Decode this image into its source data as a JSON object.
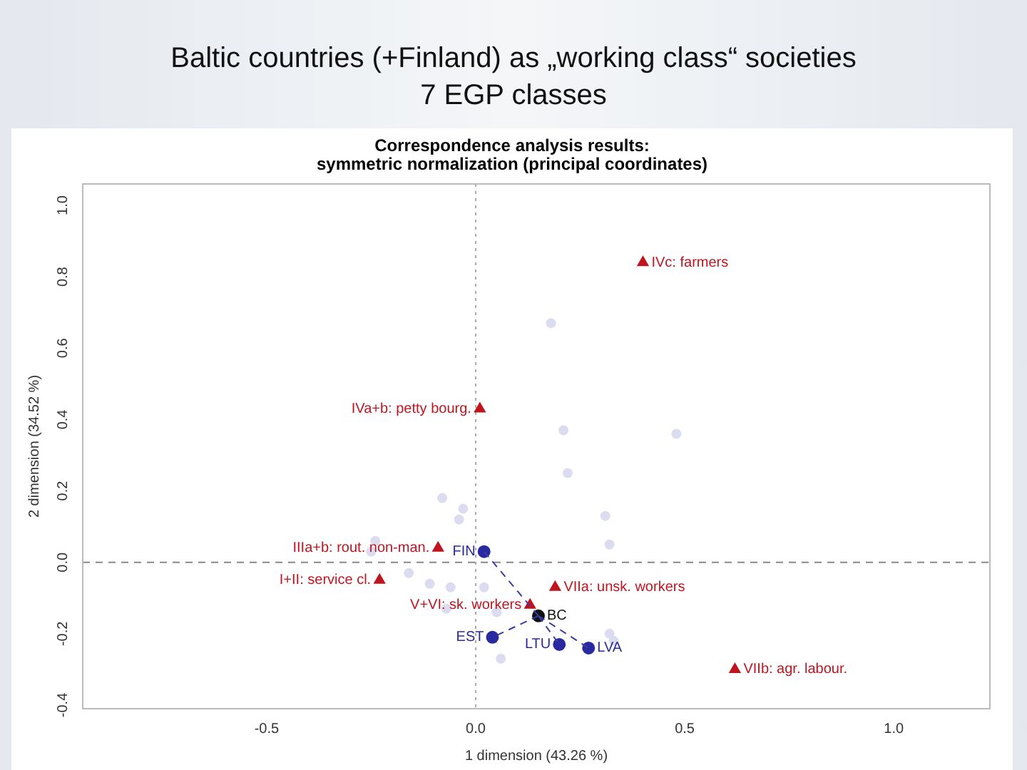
{
  "chart_data": {
    "type": "scatter",
    "title": "Baltic countries (+Finland) as „working class“ societies\n7 EGP classes",
    "subtitle": "Correspondence analysis results:\nsymmetric normalization (principal coordinates)",
    "xlabel": "1 dimension (43.26 %)",
    "ylabel": "2 dimension (34.52 %)",
    "xlim": [
      -0.94,
      1.23
    ],
    "ylim": [
      -0.41,
      1.06
    ],
    "xticks": [
      -0.5,
      {
        "value": 0,
        "label": "0.0"
      },
      0.5,
      {
        "value": 1,
        "label": "1.0"
      }
    ],
    "yticks": [
      -0.4,
      -0.2,
      {
        "value": 0,
        "label": "0.0"
      },
      0.2,
      0.4,
      0.6,
      0.8,
      {
        "value": 1,
        "label": "1.0"
      }
    ],
    "grid": false,
    "ref_lines": [
      {
        "axis": "x",
        "value": 0,
        "color": "#aaaaaa",
        "line_style": "dotted"
      },
      {
        "axis": "y",
        "value": 0,
        "color": "#888888",
        "line_style": "dashed"
      }
    ],
    "series": [
      {
        "color": "#dcdcf0",
        "marker": "circle",
        "x": [
          0.18,
          0.21,
          0.48,
          0.22,
          0.31,
          0.32,
          -0.08,
          -0.03,
          -0.04,
          -0.24,
          -0.25,
          -0.16,
          -0.11,
          -0.06,
          0.02,
          -0.07,
          0.05,
          0.06,
          0.33,
          0.32
        ],
        "values": [
          0.67,
          0.37,
          0.36,
          0.25,
          0.13,
          0.05,
          0.18,
          0.15,
          0.12,
          0.06,
          0.03,
          -0.03,
          -0.06,
          -0.07,
          -0.07,
          -0.13,
          -0.14,
          -0.27,
          -0.22,
          -0.2
        ]
      },
      {
        "type": "line",
        "color": "#3a3aa8",
        "line_style": "dashed",
        "marker": "none",
        "x": [
          0.15,
          0.02
        ],
        "values": [
          -0.15,
          0.03
        ]
      },
      {
        "type": "line",
        "color": "#3a3aa8",
        "line_style": "dashed",
        "marker": "none",
        "x": [
          0.15,
          0.04
        ],
        "values": [
          -0.15,
          -0.21
        ]
      },
      {
        "type": "line",
        "color": "#3a3aa8",
        "line_style": "dashed",
        "marker": "none",
        "x": [
          0.15,
          0.2
        ],
        "values": [
          -0.15,
          -0.23
        ]
      },
      {
        "type": "line",
        "color": "#3a3aa8",
        "line_style": "dashed",
        "marker": "none",
        "x": [
          0.15,
          0.27
        ],
        "values": [
          -0.15,
          -0.24
        ]
      },
      {
        "name": "IVc: farmers",
        "color": "#c0141e",
        "marker": "triangle",
        "x": [
          0.4
        ],
        "values": [
          0.84
        ]
      },
      {
        "name": "IVa+b: petty bourg.",
        "color": "#c0141e",
        "marker": "triangle",
        "x": [
          0.01
        ],
        "values": [
          0.43
        ]
      },
      {
        "name": "IIIa+b: rout. non-man.",
        "color": "#c0141e",
        "marker": "triangle",
        "x": [
          -0.09
        ],
        "values": [
          0.04
        ]
      },
      {
        "name": "I+II: service cl.",
        "color": "#c0141e",
        "marker": "triangle",
        "x": [
          -0.23
        ],
        "values": [
          -0.05
        ]
      },
      {
        "name": "VIIa: unsk. workers",
        "color": "#c0141e",
        "marker": "triangle",
        "x": [
          0.19
        ],
        "values": [
          -0.07
        ]
      },
      {
        "name": "V+VI: sk. workers",
        "color": "#c0141e",
        "marker": "triangle",
        "x": [
          0.13
        ],
        "values": [
          -0.12
        ]
      },
      {
        "name": "VIIb: agr. labour.",
        "color": "#c0141e",
        "marker": "triangle",
        "x": [
          0.62
        ],
        "values": [
          -0.3
        ]
      },
      {
        "name": "FIN",
        "color": "#2a2aa0",
        "marker": "circle",
        "x": [
          0.02
        ],
        "values": [
          0.03
        ]
      },
      {
        "name": "EST",
        "color": "#2a2aa0",
        "marker": "circle",
        "x": [
          0.04
        ],
        "values": [
          -0.21
        ]
      },
      {
        "name": "LTU",
        "color": "#2a2aa0",
        "marker": "circle",
        "x": [
          0.2
        ],
        "values": [
          -0.23
        ]
      },
      {
        "name": "LVA",
        "color": "#2a2aa0",
        "marker": "circle",
        "x": [
          0.27
        ],
        "values": [
          -0.24
        ]
      },
      {
        "name": "BC",
        "color": "#111111",
        "marker": "circle",
        "x": [
          0.15
        ],
        "values": [
          -0.15
        ]
      }
    ]
  }
}
